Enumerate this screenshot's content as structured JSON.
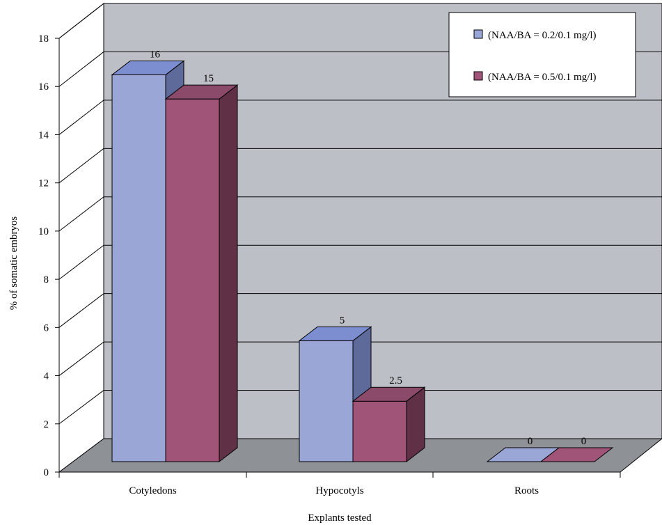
{
  "chart_data": {
    "type": "bar",
    "title": "",
    "xlabel": "Explants tested",
    "ylabel": "% of somatic embryos",
    "categories": [
      "Cotyledons",
      "Hypocotyls",
      "Roots"
    ],
    "series": [
      {
        "name": "(NAA/BA = 0.2/0.1 mg/l)",
        "values": [
          16,
          5,
          0
        ],
        "labels": [
          "16",
          "5",
          "0"
        ]
      },
      {
        "name": "(NAA/BA = 0.5/0.1 mg/l)",
        "values": [
          15,
          2.5,
          0
        ],
        "labels": [
          "15",
          "2.5",
          "0"
        ]
      }
    ],
    "ylim": [
      0,
      18
    ],
    "yticks": [
      "0",
      "2",
      "4",
      "6",
      "8",
      "10",
      "12",
      "14",
      "16",
      "18"
    ],
    "grid": true,
    "legend_position": "top-right",
    "style": "3d-clustered-column"
  },
  "colors": {
    "series_front": [
      "#9aa6d6",
      "#a05478"
    ],
    "series_top": [
      "#7c8dd0",
      "#8b4a6a"
    ],
    "series_side": [
      "#5e6a99",
      "#5f3046"
    ],
    "wall": "#bcc0c6",
    "floor": "#8e9196",
    "side_wall": "#ffffff"
  }
}
